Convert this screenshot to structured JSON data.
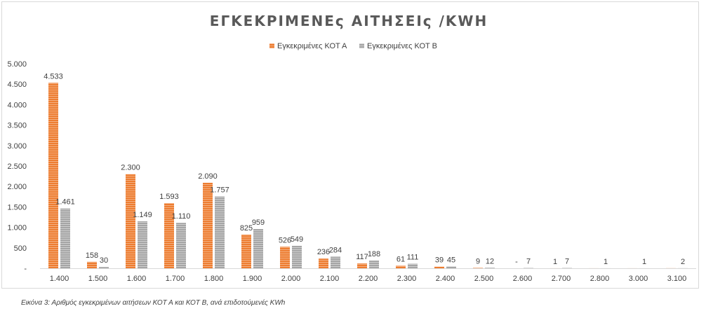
{
  "chart_data": {
    "type": "bar",
    "title": "ΕΓΚΕΚΡΙΜΕΝΕς ΑΙΤΗΣΕΙς /KWH",
    "xlabel": "",
    "ylabel": "",
    "ylim": [
      0,
      5000
    ],
    "yticks": [
      0,
      500,
      1000,
      1500,
      2000,
      2500,
      3000,
      3500,
      4000,
      4500,
      5000
    ],
    "ytick_labels": [
      "-",
      "500",
      "1.000",
      "1.500",
      "2.000",
      "2.500",
      "3.000",
      "3.500",
      "4.000",
      "4.500",
      "5.000"
    ],
    "categories": [
      "1.400",
      "1.500",
      "1.600",
      "1.700",
      "1.800",
      "1.900",
      "2.000",
      "2.100",
      "2.200",
      "2.300",
      "2.400",
      "2.500",
      "2.600",
      "2.700",
      "2.800",
      "3.000",
      "3.100"
    ],
    "legend_position": "top-center",
    "grid": false,
    "series": [
      {
        "name": "Εγκεκριμένες ΚΟΤ Α",
        "color": "#ed7d31",
        "values": [
          4533,
          158,
          2300,
          1593,
          2090,
          825,
          526,
          236,
          117,
          61,
          39,
          9,
          0,
          1,
          1,
          1,
          2
        ],
        "labels": [
          "4.533",
          "158",
          "2.300",
          "1.593",
          "2.090",
          "825",
          "526",
          "236",
          "117",
          "61",
          "39",
          "9",
          "-",
          "1",
          "",
          "",
          ""
        ]
      },
      {
        "name": "Εγκεκριμένες ΚΟΤ Β",
        "color": "#a5a5a5",
        "values": [
          1461,
          30,
          1149,
          1110,
          1757,
          959,
          549,
          284,
          188,
          111,
          45,
          12,
          7,
          7,
          1,
          1,
          2
        ],
        "labels": [
          "1.461",
          "30",
          "1.149",
          "1.110",
          "1.757",
          "959",
          "549",
          "284",
          "188",
          "111",
          "45",
          "12",
          "7",
          "7",
          "1",
          "1",
          "2"
        ]
      }
    ]
  },
  "caption": "Εικόνα 3: Αριθμός εγκεκριμένων αιτήσεων ΚΟΤ Α και ΚΟΤ Β, ανά επιδοτούμενές KWh"
}
